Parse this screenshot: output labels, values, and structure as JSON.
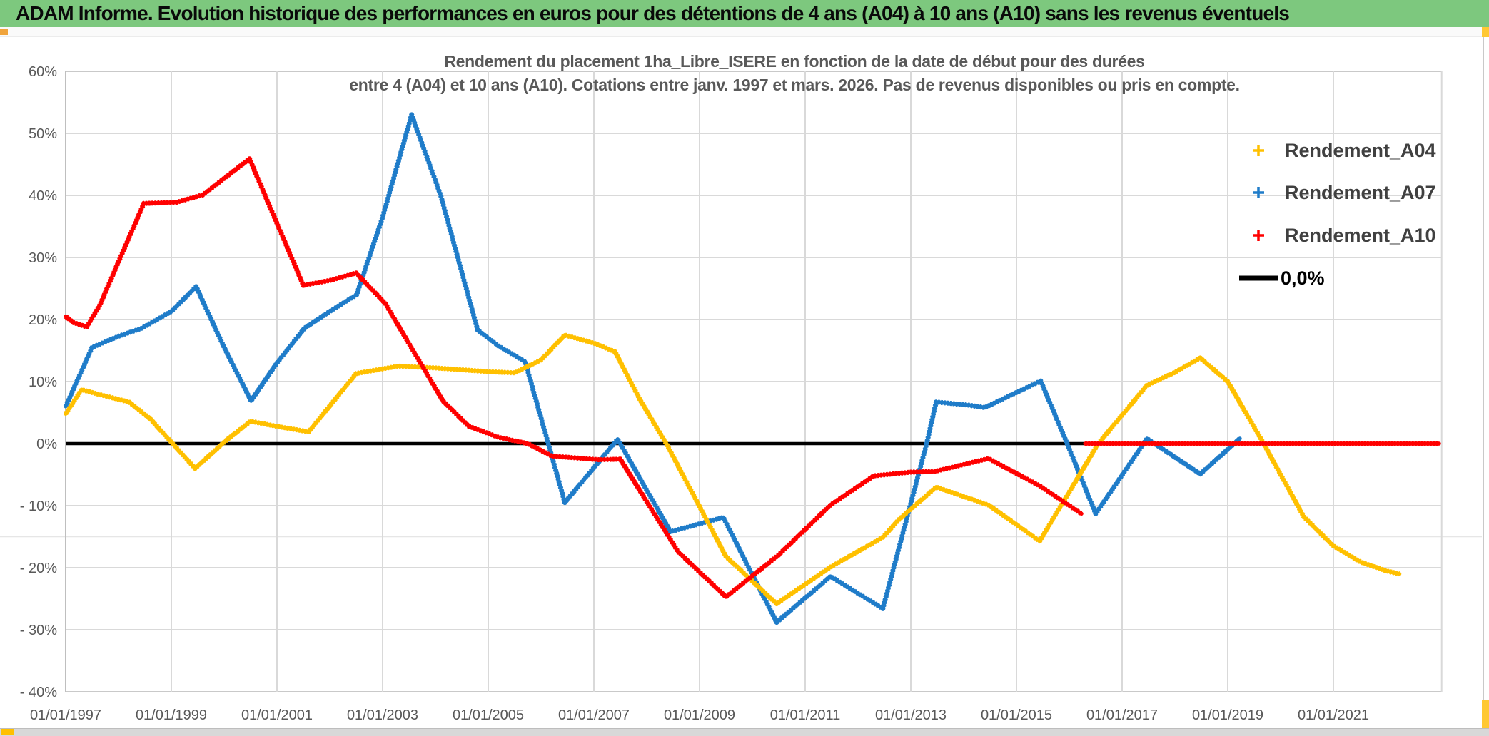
{
  "header": {
    "title": "ADAM Informe. Evolution historique des performances en euros pour des détentions de 4 ans (A04) à 10 ans (A10) sans les revenus éventuels"
  },
  "chart": {
    "title_line1": "Rendement du placement 1ha_Libre_ISERE en fonction de la date de début pour des durées",
    "title_line2": "entre 4 (A04) et 10 ans (A10). Cotations entre janv. 1997 et mars. 2026. Pas de revenus disponibles ou pris en compte."
  },
  "chart_data": {
    "type": "line",
    "title": "Rendement du placement 1ha_Libre_ISERE en fonction de la date de début pour des durées entre 4 (A04) et 10 ans (A10). Cotations entre janv. 1997 et mars. 2026. Pas de revenus disponibles ou pris en compte.",
    "x_range": [
      1997.0,
      2023.05
    ],
    "y_range": [
      -40,
      60
    ],
    "grid": true,
    "legend_position": "right",
    "y_axis": {
      "ticks": [
        {
          "value": 60,
          "label": "60%"
        },
        {
          "value": 50,
          "label": "50%"
        },
        {
          "value": 40,
          "label": "40%"
        },
        {
          "value": 30,
          "label": "30%"
        },
        {
          "value": 20,
          "label": "20%"
        },
        {
          "value": 10,
          "label": "10%"
        },
        {
          "value": 0,
          "label": "0%"
        },
        {
          "value": -10,
          "label": "- 10%"
        },
        {
          "value": -20,
          "label": "- 20%"
        },
        {
          "value": -30,
          "label": "- 30%"
        },
        {
          "value": -40,
          "label": "- 40%"
        }
      ]
    },
    "x_axis": {
      "ticks": [
        {
          "year": 1997,
          "label": "01/01/1997"
        },
        {
          "year": 1999,
          "label": "01/01/1999"
        },
        {
          "year": 2001,
          "label": "01/01/2001"
        },
        {
          "year": 2003,
          "label": "01/01/2003"
        },
        {
          "year": 2005,
          "label": "01/01/2005"
        },
        {
          "year": 2007,
          "label": "01/01/2007"
        },
        {
          "year": 2009,
          "label": "01/01/2009"
        },
        {
          "year": 2011,
          "label": "01/01/2011"
        },
        {
          "year": 2013,
          "label": "01/01/2013"
        },
        {
          "year": 2015,
          "label": "01/01/2015"
        },
        {
          "year": 2017,
          "label": "01/01/2017"
        },
        {
          "year": 2019,
          "label": "01/01/2019"
        },
        {
          "year": 2021,
          "label": "01/01/2021"
        }
      ]
    },
    "legend": [
      {
        "label": "Rendement_A04",
        "color": "#FFC000",
        "marker": "plus"
      },
      {
        "label": "Rendement_A07",
        "color": "#1F7CC9",
        "marker": "plus"
      },
      {
        "label": "Rendement_A10",
        "color": "#FF0000",
        "marker": "plus"
      },
      {
        "label": "0,0%",
        "color": "#000000",
        "marker": "line"
      }
    ],
    "series": [
      {
        "name": "Zero_line",
        "color": "#000000",
        "width": 4.5,
        "dashed": false,
        "segments": [
          [
            [
              1997.0,
              0
            ],
            [
              2023.0,
              0
            ]
          ]
        ]
      },
      {
        "name": "Rendement_A07",
        "color": "#1F7CC9",
        "width": 7,
        "dashed": true,
        "segments": [
          [
            [
              1997.0,
              6.0
            ],
            [
              1997.5,
              15.5
            ],
            [
              1998.0,
              17.3
            ],
            [
              1998.44,
              18.6
            ],
            [
              1999.0,
              21.3
            ],
            [
              1999.47,
              25.3
            ],
            [
              2000.0,
              15.5
            ],
            [
              2000.51,
              6.9
            ],
            [
              2001.0,
              13.0
            ],
            [
              2001.52,
              18.6
            ],
            [
              2002.0,
              21.3
            ],
            [
              2002.51,
              24.0
            ],
            [
              2003.0,
              36.5
            ],
            [
              2003.55,
              53.0
            ],
            [
              2004.1,
              40.0
            ],
            [
              2004.8,
              18.3
            ],
            [
              2005.2,
              15.7
            ],
            [
              2005.7,
              13.2
            ],
            [
              2006.45,
              -9.5
            ],
            [
              2007.45,
              0.7
            ],
            [
              2008.45,
              -14.2
            ],
            [
              2009.45,
              -11.9
            ],
            [
              2010.46,
              -28.8
            ],
            [
              2011.48,
              -21.4
            ],
            [
              2012.47,
              -26.6
            ],
            [
              2013.3,
              0.0
            ],
            [
              2013.48,
              6.7
            ],
            [
              2014.1,
              6.2
            ],
            [
              2014.4,
              5.8
            ],
            [
              2015.46,
              10.1
            ],
            [
              2015.96,
              0.0
            ],
            [
              2016.5,
              -11.3
            ],
            [
              2017.47,
              0.8
            ],
            [
              2018.48,
              -4.9
            ],
            [
              2019.23,
              0.8
            ]
          ]
        ]
      },
      {
        "name": "Rendement_A04",
        "color": "#FFC000",
        "width": 7,
        "dashed": true,
        "segments": [
          [
            [
              1997.0,
              4.8
            ],
            [
              1997.3,
              8.7
            ],
            [
              1997.6,
              8.0
            ],
            [
              1998.2,
              6.7
            ],
            [
              1998.6,
              4.0
            ],
            [
              1999.45,
              -4.0
            ],
            [
              2000.05,
              0.6
            ],
            [
              2000.5,
              3.6
            ],
            [
              2001.05,
              2.7
            ],
            [
              2001.6,
              1.9
            ],
            [
              2002.5,
              11.3
            ],
            [
              2003.3,
              12.5
            ],
            [
              2004.0,
              12.2
            ],
            [
              2005.0,
              11.6
            ],
            [
              2005.5,
              11.4
            ],
            [
              2006.0,
              13.5
            ],
            [
              2006.45,
              17.5
            ],
            [
              2007.0,
              16.2
            ],
            [
              2007.4,
              14.8
            ],
            [
              2007.87,
              7.1
            ],
            [
              2008.37,
              0.0
            ],
            [
              2009.5,
              -18.2
            ],
            [
              2010.46,
              -25.8
            ],
            [
              2011.48,
              -19.9
            ],
            [
              2012.47,
              -15.1
            ],
            [
              2012.78,
              -12.2
            ],
            [
              2013.48,
              -7.0
            ],
            [
              2014.47,
              -9.9
            ],
            [
              2015.44,
              -15.7
            ],
            [
              2016.55,
              0.0
            ],
            [
              2017.47,
              9.4
            ],
            [
              2018.0,
              11.5
            ],
            [
              2018.48,
              13.8
            ],
            [
              2019.0,
              10.0
            ],
            [
              2019.68,
              0.0
            ],
            [
              2020.44,
              -11.8
            ],
            [
              2021.0,
              -16.5
            ],
            [
              2021.52,
              -19.1
            ],
            [
              2022.0,
              -20.5
            ],
            [
              2022.25,
              -21.0
            ]
          ]
        ]
      },
      {
        "name": "Rendement_A10",
        "color": "#FF0000",
        "width": 7,
        "dashed": true,
        "segments": [
          [
            [
              1997.0,
              20.5
            ],
            [
              1997.15,
              19.5
            ],
            [
              1997.4,
              18.8
            ],
            [
              1997.65,
              22.4
            ],
            [
              1998.48,
              38.7
            ],
            [
              1999.1,
              38.9
            ],
            [
              1999.6,
              40.1
            ],
            [
              2000.48,
              45.9
            ],
            [
              2001.5,
              25.5
            ],
            [
              2002.0,
              26.3
            ],
            [
              2002.5,
              27.5
            ],
            [
              2003.05,
              22.6
            ],
            [
              2004.14,
              6.9
            ],
            [
              2004.63,
              2.8
            ],
            [
              2005.2,
              1.0
            ],
            [
              2005.75,
              0.0
            ],
            [
              2006.2,
              -2.0
            ],
            [
              2007.1,
              -2.6
            ],
            [
              2007.5,
              -2.5
            ],
            [
              2008.59,
              -17.4
            ],
            [
              2009.5,
              -24.7
            ],
            [
              2010.49,
              -18.0
            ],
            [
              2011.48,
              -9.9
            ],
            [
              2012.3,
              -5.2
            ],
            [
              2013.0,
              -4.6
            ],
            [
              2013.45,
              -4.5
            ],
            [
              2014.47,
              -2.4
            ],
            [
              2015.46,
              -6.9
            ],
            [
              2016.23,
              -11.3
            ]
          ],
          [
            [
              2016.3,
              0.0
            ],
            [
              2023.0,
              0.0
            ]
          ]
        ]
      }
    ]
  }
}
